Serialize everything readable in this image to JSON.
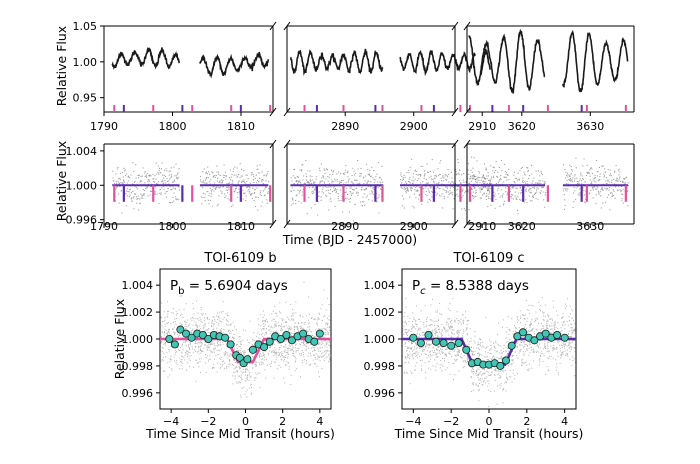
{
  "figure": {
    "shared_xlabel": "Time (BJD - 2457000)",
    "colors": {
      "planet_b": "#e0529c",
      "planet_c": "#5b2bb0",
      "binned": "#40c6b4",
      "raw": "#555555"
    }
  },
  "chart_data": [
    {
      "type": "line",
      "name_hint": "top raw light curve",
      "ylabel": "Relative Flux",
      "ylim": [
        0.93,
        1.05
      ],
      "yticks": [
        "1.05",
        "1.00",
        "0.95"
      ],
      "segments": [
        {
          "xlim": [
            1790,
            1814.5
          ],
          "xticks": [
            "1790",
            "1800",
            "1810"
          ],
          "data_ranges": [
            [
              1791.2,
              1801.0
            ],
            [
              1804.0,
              1814.0
            ]
          ],
          "amplitude": 0.012,
          "period_days": 2.0
        },
        {
          "xlim": [
            2881.5,
            2911.5
          ],
          "xticks": [
            "2890",
            "2900",
            "2910"
          ],
          "data_ranges": [
            [
              2882.0,
              2895.5
            ],
            [
              2898.0,
              2909.0
            ],
            [
              2909.8,
              2911.2
            ]
          ],
          "amplitude": 0.014,
          "period_days": 1.6
        },
        {
          "xlim": [
            3612,
            3636
          ],
          "xticks": [
            "3620",
            "3630"
          ],
          "data_ranges": [
            [
              3612.3,
              3623.4
            ],
            [
              3626.0,
              3635.5
            ]
          ],
          "amplitude": 0.042,
          "period_days": 2.5
        }
      ]
    },
    {
      "type": "scatter",
      "name_hint": "middle detrended light curve",
      "ylabel": "Relative Flux",
      "xlabel": "Time (BJD - 2457000)",
      "ylim": [
        0.9955,
        1.0048
      ],
      "yticks": [
        "1.004",
        "1.000",
        "0.996"
      ],
      "model_level": 1.0,
      "transit_depth": 0.0012
    },
    {
      "type": "scatter",
      "title": "TOI-6109 b",
      "annotation_main": "P",
      "annotation_sub": "b",
      "annotation_rest": " = 5.6904 days",
      "xlabel": "Time Since Mid Transit (hours)",
      "ylabel": "Relative Flux",
      "xlim": [
        -4.6,
        4.6
      ],
      "ylim": [
        0.9948,
        1.0052
      ],
      "xticks": [
        "-4",
        "-2",
        "0",
        "2",
        "4"
      ],
      "yticks": [
        "1.004",
        "1.002",
        "1.000",
        "0.998",
        "0.996"
      ],
      "period_days": 5.6904,
      "transit_depth": 0.0017,
      "transit_duration_hours": 1.4,
      "binned": {
        "x": [
          -4.1,
          -3.8,
          -3.5,
          -3.2,
          -2.9,
          -2.6,
          -2.3,
          -2.0,
          -1.7,
          -1.4,
          -1.1,
          -0.8,
          -0.5,
          -0.3,
          -0.1,
          0.1,
          0.4,
          0.7,
          1.0,
          1.3,
          1.6,
          1.9,
          2.2,
          2.5,
          2.8,
          3.1,
          3.4,
          3.7,
          4.0
        ],
        "y": [
          1.0,
          0.9996,
          1.0007,
          1.0004,
          1.0001,
          1.0004,
          1.0003,
          1.0,
          1.0003,
          1.0002,
          1.0001,
          0.9996,
          0.9988,
          0.9986,
          0.9982,
          0.9985,
          0.9992,
          0.9996,
          0.9994,
          0.9998,
          1.0002,
          1.0,
          1.0003,
          0.9999,
          1.0002,
          1.0004,
          1.0,
          0.9998,
          1.0004
        ]
      }
    },
    {
      "type": "scatter",
      "title": "TOI-6109 c",
      "annotation_main": "P",
      "annotation_sub": "c",
      "annotation_rest": " = 8.5388 days",
      "xlabel": "Time Since Mid Transit (hours)",
      "ylabel": "",
      "xlim": [
        -4.6,
        4.6
      ],
      "ylim": [
        0.9948,
        1.0052
      ],
      "xticks": [
        "-4",
        "-2",
        "0",
        "2",
        "4"
      ],
      "yticks": [
        "1.004",
        "1.002",
        "1.000",
        "0.998",
        "0.996"
      ],
      "period_days": 8.5388,
      "transit_depth": 0.0019,
      "transit_duration_hours": 2.3,
      "binned": {
        "x": [
          -4.0,
          -3.6,
          -3.2,
          -2.8,
          -2.4,
          -2.0,
          -1.6,
          -1.2,
          -0.9,
          -0.6,
          -0.3,
          0.0,
          0.3,
          0.6,
          0.9,
          1.2,
          1.5,
          1.8,
          2.1,
          2.4,
          2.7,
          3.0,
          3.3,
          3.6,
          4.0
        ],
        "y": [
          1.0001,
          0.9997,
          1.0003,
          0.9998,
          0.9997,
          0.9995,
          0.9997,
          0.9992,
          0.9982,
          0.9983,
          0.9981,
          0.9981,
          0.9982,
          0.998,
          0.9984,
          0.9995,
          1.0002,
          1.0005,
          1.0001,
          0.9999,
          1.0002,
          1.0004,
          1.0001,
          1.0003,
          1.0001
        ]
      }
    }
  ]
}
